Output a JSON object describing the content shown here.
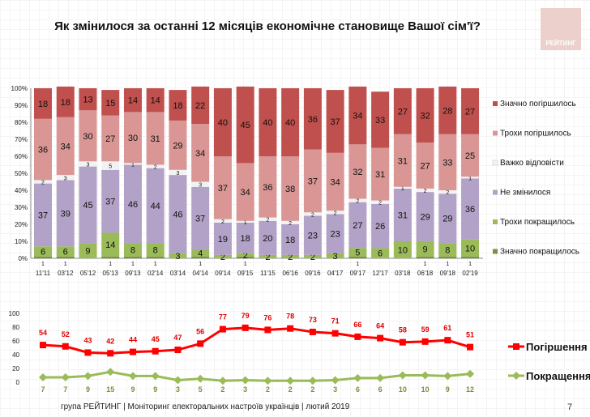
{
  "title": "Як змінилося за останні 12 місяців економічне становище Вашої сім'ї?",
  "logo_text": "РЕЙТИНГ",
  "footer": "група РЕЙТИНГ | Моніторинг електоральних настроїв українців | лютий 2019",
  "page_number": "7",
  "chart_data": [
    {
      "type": "bar",
      "stacked": true,
      "categories": [
        "11'11",
        "03'12",
        "05'12",
        "05'13",
        "09'13",
        "02'14",
        "03'14",
        "04'14",
        "09'14",
        "09'15",
        "11'15",
        "06'16",
        "09'16",
        "04'17",
        "09'17",
        "12'17",
        "03'18",
        "06'18",
        "09'18",
        "02'19"
      ],
      "y_ticks": [
        "0%",
        "10%",
        "20%",
        "30%",
        "40%",
        "50%",
        "60%",
        "70%",
        "80%",
        "90%",
        "100%"
      ],
      "ylim": [
        0,
        100
      ],
      "legend_position": "right",
      "series": [
        {
          "name": "Значно покращилось",
          "color": "#77933c",
          "values": [
            1,
            1,
            0,
            1,
            1,
            1,
            0,
            1,
            0,
            1,
            0,
            0,
            0,
            0,
            1,
            0,
            0,
            1,
            1,
            1
          ]
        },
        {
          "name": "Трохи покращилось",
          "color": "#9bbb59",
          "values": [
            6,
            6,
            9,
            14,
            8,
            8,
            3,
            4,
            2,
            2,
            2,
            2,
            2,
            3,
            5,
            6,
            10,
            9,
            8,
            10
          ]
        },
        {
          "name": "Не змінилося",
          "color": "#b3a2c7",
          "values": [
            37,
            39,
            45,
            37,
            46,
            44,
            46,
            37,
            19,
            18,
            20,
            18,
            23,
            23,
            27,
            26,
            31,
            29,
            29,
            36
          ]
        },
        {
          "name": "Важко відповісти",
          "color": "#f2f2f2",
          "values": [
            2,
            3,
            3,
            5,
            1,
            2,
            3,
            3,
            2,
            1,
            2,
            2,
            2,
            2,
            2,
            2,
            1,
            2,
            2,
            1
          ]
        },
        {
          "name": "Трохи погіршилось",
          "color": "#d99694",
          "values": [
            36,
            34,
            30,
            27,
            30,
            31,
            29,
            34,
            37,
            34,
            36,
            38,
            37,
            34,
            32,
            31,
            31,
            27,
            33,
            25
          ]
        },
        {
          "name": "Значно погіршилось",
          "color": "#c0504d",
          "values": [
            18,
            18,
            13,
            15,
            14,
            14,
            18,
            22,
            40,
            45,
            40,
            40,
            36,
            37,
            34,
            33,
            27,
            32,
            28,
            27
          ]
        }
      ]
    },
    {
      "type": "line",
      "categories": [
        "11'11",
        "03'12",
        "05'12",
        "05'13",
        "09'13",
        "02'14",
        "03'14",
        "04'14",
        "09'14",
        "09'15",
        "11'15",
        "06'16",
        "09'16",
        "04'17",
        "09'17",
        "12'17",
        "03'18",
        "06'18",
        "09'18",
        "02'19"
      ],
      "y_ticks": [
        "0",
        "20",
        "40",
        "60",
        "80",
        "100"
      ],
      "ylim": [
        0,
        100
      ],
      "legend_position": "right",
      "series": [
        {
          "name": "Погіршення",
          "color": "#ff0000",
          "marker": "square",
          "values": [
            54,
            52,
            43,
            42,
            44,
            45,
            47,
            56,
            77,
            79,
            76,
            78,
            73,
            71,
            66,
            64,
            58,
            59,
            61,
            51
          ]
        },
        {
          "name": "Покращення",
          "color": "#9bbb59",
          "marker": "diamond",
          "values": [
            7,
            7,
            9,
            15,
            9,
            9,
            3,
            5,
            2,
            3,
            2,
            2,
            2,
            3,
            6,
            6,
            10,
            10,
            9,
            12
          ]
        }
      ]
    }
  ]
}
